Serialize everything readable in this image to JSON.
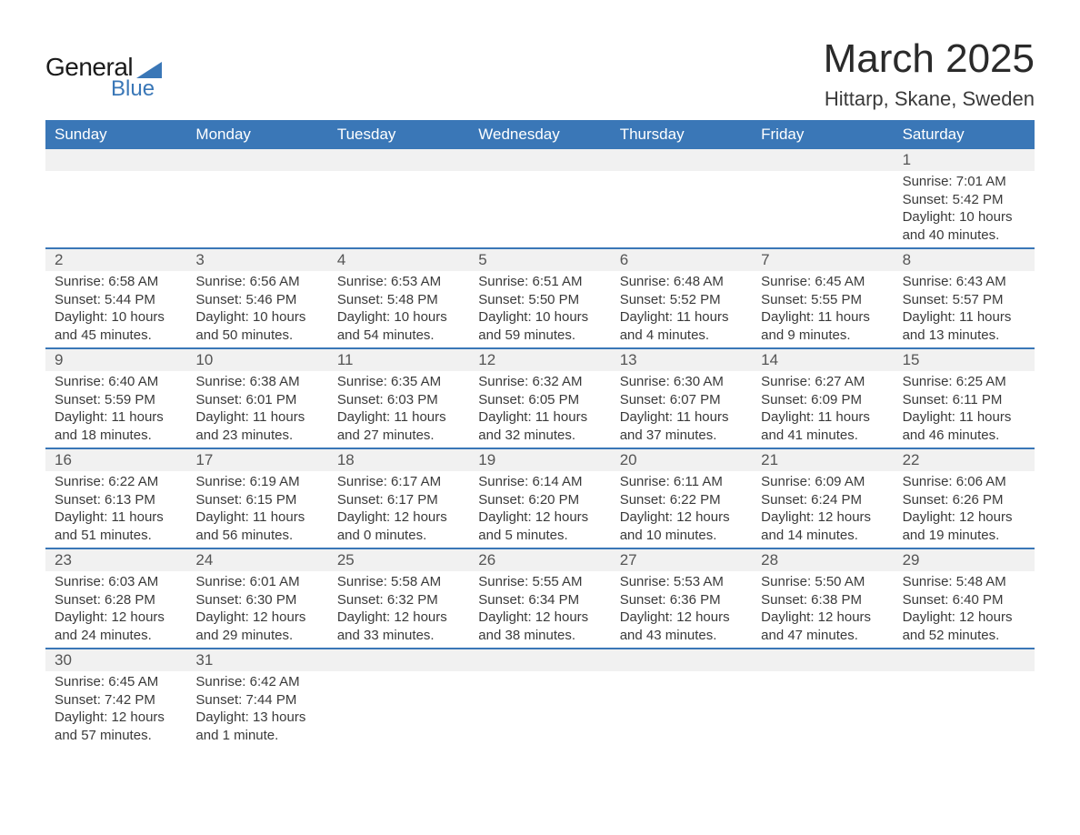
{
  "logo": {
    "word1": "General",
    "word2": "Blue"
  },
  "title": "March 2025",
  "location": "Hittarp, Skane, Sweden",
  "colors": {
    "header_bg": "#3a77b7",
    "header_text": "#ffffff",
    "daynum_bg": "#f1f1f1",
    "border": "#3a77b7",
    "text": "#333333",
    "logo_accent": "#3a77b7"
  },
  "typography": {
    "title_fontsize": 44,
    "subtitle_fontsize": 22,
    "dayheader_fontsize": 17,
    "daynum_fontsize": 17,
    "cell_fontsize": 15
  },
  "day_names": [
    "Sunday",
    "Monday",
    "Tuesday",
    "Wednesday",
    "Thursday",
    "Friday",
    "Saturday"
  ],
  "weeks": [
    [
      null,
      null,
      null,
      null,
      null,
      null,
      {
        "n": "1",
        "sunrise": "7:01 AM",
        "sunset": "5:42 PM",
        "daylight": "10 hours and 40 minutes."
      }
    ],
    [
      {
        "n": "2",
        "sunrise": "6:58 AM",
        "sunset": "5:44 PM",
        "daylight": "10 hours and 45 minutes."
      },
      {
        "n": "3",
        "sunrise": "6:56 AM",
        "sunset": "5:46 PM",
        "daylight": "10 hours and 50 minutes."
      },
      {
        "n": "4",
        "sunrise": "6:53 AM",
        "sunset": "5:48 PM",
        "daylight": "10 hours and 54 minutes."
      },
      {
        "n": "5",
        "sunrise": "6:51 AM",
        "sunset": "5:50 PM",
        "daylight": "10 hours and 59 minutes."
      },
      {
        "n": "6",
        "sunrise": "6:48 AM",
        "sunset": "5:52 PM",
        "daylight": "11 hours and 4 minutes."
      },
      {
        "n": "7",
        "sunrise": "6:45 AM",
        "sunset": "5:55 PM",
        "daylight": "11 hours and 9 minutes."
      },
      {
        "n": "8",
        "sunrise": "6:43 AM",
        "sunset": "5:57 PM",
        "daylight": "11 hours and 13 minutes."
      }
    ],
    [
      {
        "n": "9",
        "sunrise": "6:40 AM",
        "sunset": "5:59 PM",
        "daylight": "11 hours and 18 minutes."
      },
      {
        "n": "10",
        "sunrise": "6:38 AM",
        "sunset": "6:01 PM",
        "daylight": "11 hours and 23 minutes."
      },
      {
        "n": "11",
        "sunrise": "6:35 AM",
        "sunset": "6:03 PM",
        "daylight": "11 hours and 27 minutes."
      },
      {
        "n": "12",
        "sunrise": "6:32 AM",
        "sunset": "6:05 PM",
        "daylight": "11 hours and 32 minutes."
      },
      {
        "n": "13",
        "sunrise": "6:30 AM",
        "sunset": "6:07 PM",
        "daylight": "11 hours and 37 minutes."
      },
      {
        "n": "14",
        "sunrise": "6:27 AM",
        "sunset": "6:09 PM",
        "daylight": "11 hours and 41 minutes."
      },
      {
        "n": "15",
        "sunrise": "6:25 AM",
        "sunset": "6:11 PM",
        "daylight": "11 hours and 46 minutes."
      }
    ],
    [
      {
        "n": "16",
        "sunrise": "6:22 AM",
        "sunset": "6:13 PM",
        "daylight": "11 hours and 51 minutes."
      },
      {
        "n": "17",
        "sunrise": "6:19 AM",
        "sunset": "6:15 PM",
        "daylight": "11 hours and 56 minutes."
      },
      {
        "n": "18",
        "sunrise": "6:17 AM",
        "sunset": "6:17 PM",
        "daylight": "12 hours and 0 minutes."
      },
      {
        "n": "19",
        "sunrise": "6:14 AM",
        "sunset": "6:20 PM",
        "daylight": "12 hours and 5 minutes."
      },
      {
        "n": "20",
        "sunrise": "6:11 AM",
        "sunset": "6:22 PM",
        "daylight": "12 hours and 10 minutes."
      },
      {
        "n": "21",
        "sunrise": "6:09 AM",
        "sunset": "6:24 PM",
        "daylight": "12 hours and 14 minutes."
      },
      {
        "n": "22",
        "sunrise": "6:06 AM",
        "sunset": "6:26 PM",
        "daylight": "12 hours and 19 minutes."
      }
    ],
    [
      {
        "n": "23",
        "sunrise": "6:03 AM",
        "sunset": "6:28 PM",
        "daylight": "12 hours and 24 minutes."
      },
      {
        "n": "24",
        "sunrise": "6:01 AM",
        "sunset": "6:30 PM",
        "daylight": "12 hours and 29 minutes."
      },
      {
        "n": "25",
        "sunrise": "5:58 AM",
        "sunset": "6:32 PM",
        "daylight": "12 hours and 33 minutes."
      },
      {
        "n": "26",
        "sunrise": "5:55 AM",
        "sunset": "6:34 PM",
        "daylight": "12 hours and 38 minutes."
      },
      {
        "n": "27",
        "sunrise": "5:53 AM",
        "sunset": "6:36 PM",
        "daylight": "12 hours and 43 minutes."
      },
      {
        "n": "28",
        "sunrise": "5:50 AM",
        "sunset": "6:38 PM",
        "daylight": "12 hours and 47 minutes."
      },
      {
        "n": "29",
        "sunrise": "5:48 AM",
        "sunset": "6:40 PM",
        "daylight": "12 hours and 52 minutes."
      }
    ],
    [
      {
        "n": "30",
        "sunrise": "6:45 AM",
        "sunset": "7:42 PM",
        "daylight": "12 hours and 57 minutes."
      },
      {
        "n": "31",
        "sunrise": "6:42 AM",
        "sunset": "7:44 PM",
        "daylight": "13 hours and 1 minute."
      },
      null,
      null,
      null,
      null,
      null
    ]
  ],
  "labels": {
    "sunrise_prefix": "Sunrise: ",
    "sunset_prefix": "Sunset: ",
    "daylight_prefix": "Daylight: "
  }
}
